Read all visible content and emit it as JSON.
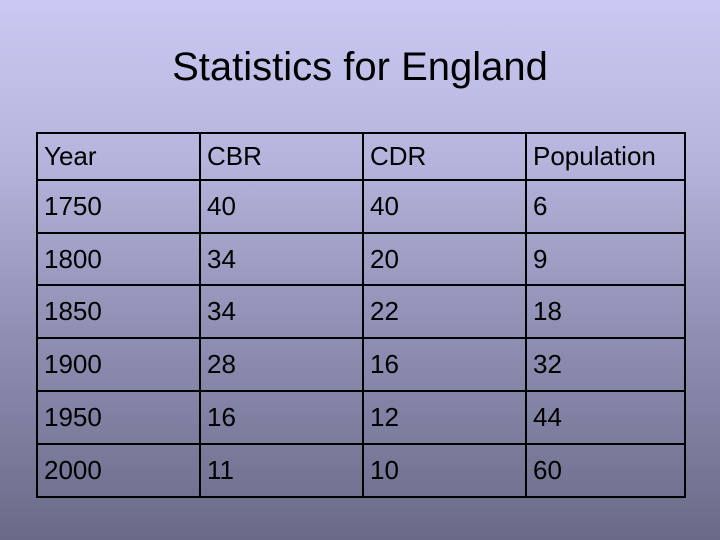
{
  "slide": {
    "title": "Statistics for England"
  },
  "table": {
    "headers": [
      "Year",
      "CBR",
      "CDR",
      "Population"
    ],
    "rows": [
      [
        "1750",
        "40",
        "40",
        "6"
      ],
      [
        "1800",
        "34",
        "20",
        "9"
      ],
      [
        "1850",
        "34",
        "22",
        "18"
      ],
      [
        "1900",
        "28",
        "16",
        "32"
      ],
      [
        "1950",
        "16",
        "12",
        "44"
      ],
      [
        "2000",
        "11",
        "10",
        "60"
      ]
    ]
  }
}
